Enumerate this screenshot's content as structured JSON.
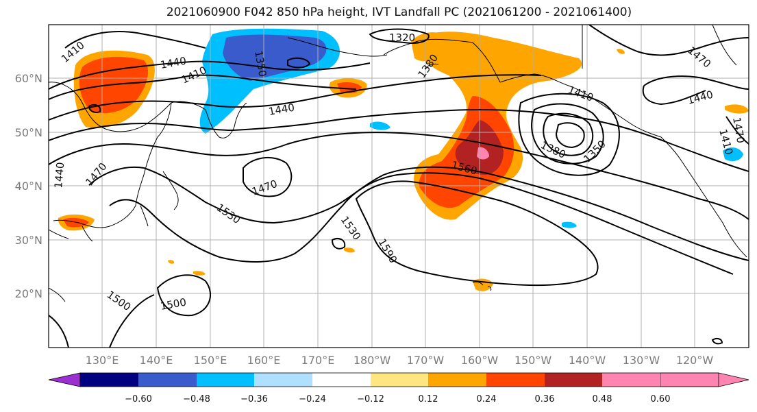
{
  "title": "2021060900 F042 850 hPa height, IVT Landfall PC (2021061200 - 2021061400)",
  "lat_labels": [
    "60°N",
    "50°N",
    "40°N",
    "30°N",
    "20°N"
  ],
  "lon_labels": [
    "130°E",
    "140°E",
    "150°E",
    "160°E",
    "170°E",
    "180°W",
    "170°W",
    "160°W",
    "150°W",
    "140°W",
    "130°W",
    "120°W"
  ],
  "colorbar": {
    "ticks": [
      "−0.60",
      "−0.48",
      "−0.36",
      "−0.24",
      "−0.12",
      "0.12",
      "0.24",
      "0.36",
      "0.48",
      "0.60"
    ],
    "colors": [
      "#9b30d0",
      "#000080",
      "#3a5bcc",
      "#00bfff",
      "#b0e0ff",
      "#ffffff",
      "#ffe680",
      "#ffa500",
      "#ff4500",
      "#b22222",
      "#ff85b0"
    ]
  },
  "contour_labels": [
    "1410",
    "1440",
    "1410",
    "1350",
    "1440",
    "1320",
    "1380",
    "1470",
    "1410",
    "1380",
    "1350",
    "1440",
    "1410",
    "1560",
    "1470",
    "1440",
    "1470",
    "1530",
    "1530",
    "1590",
    "1500",
    "1500",
    "1470"
  ]
}
